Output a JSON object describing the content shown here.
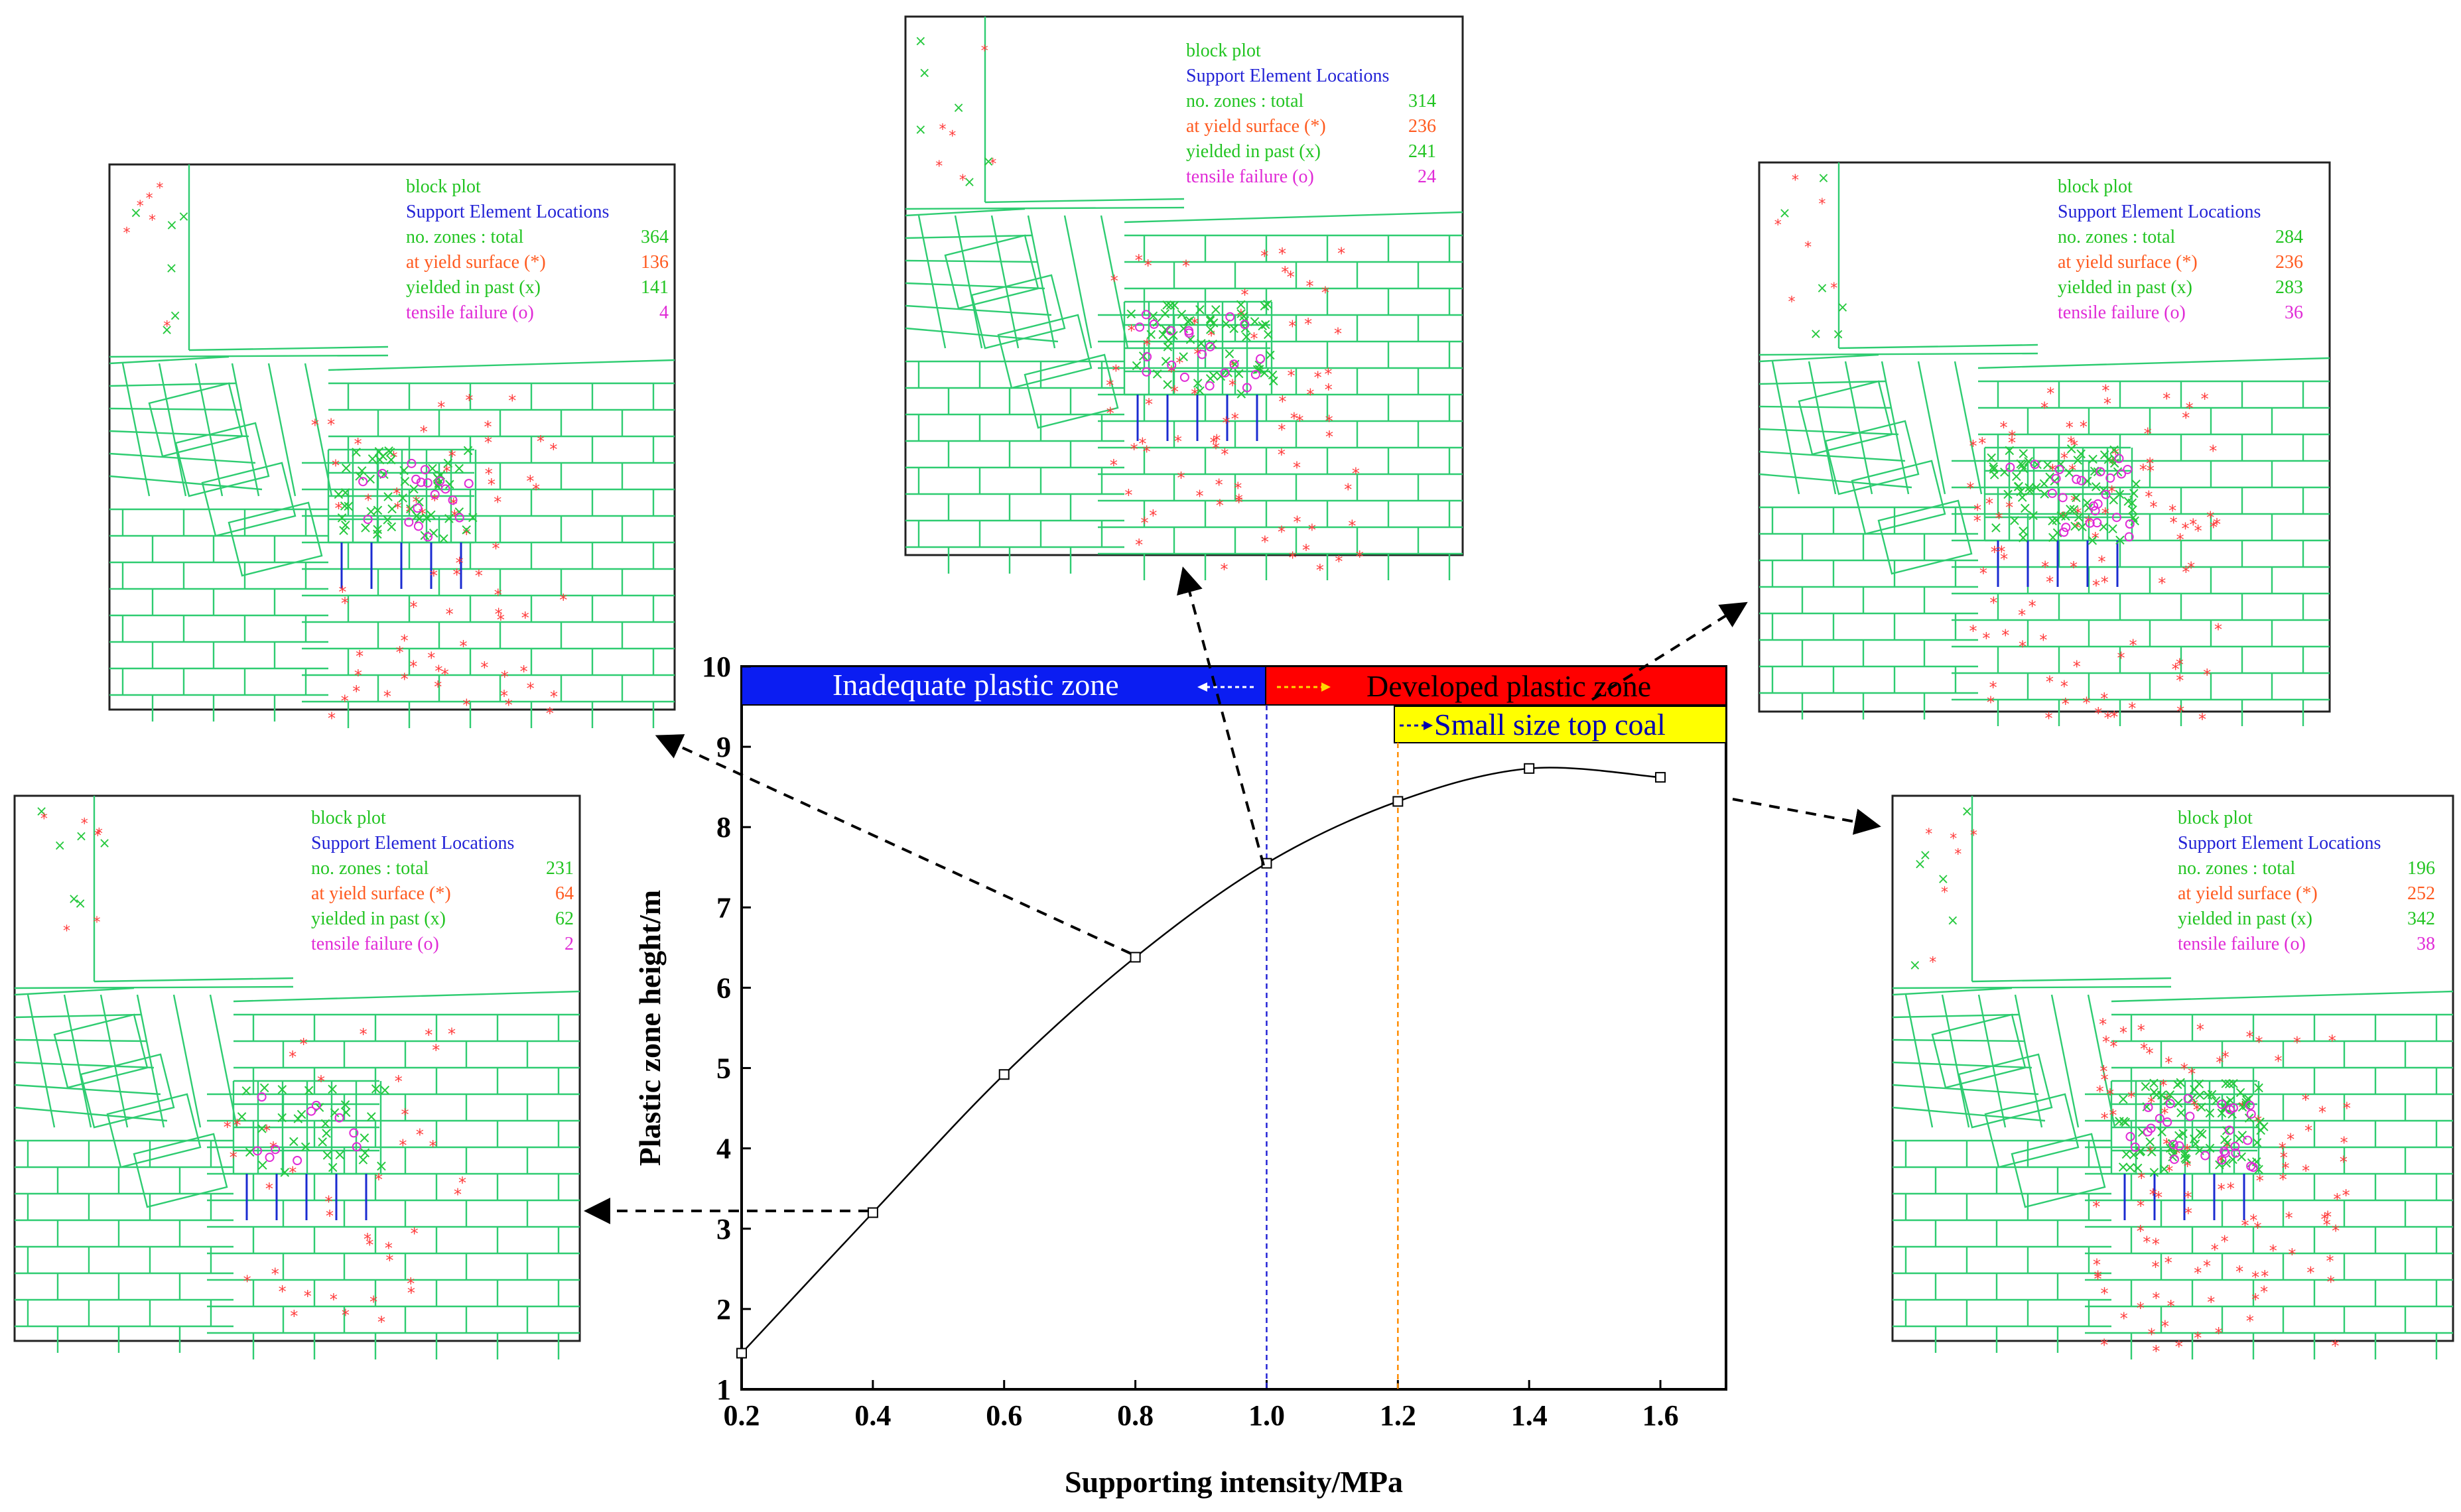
{
  "colors": {
    "block_line": "#2ecc71",
    "yield_marker": "#ff3b3b",
    "past_marker": "#27c93f",
    "tensile_marker": "#e02bd6",
    "legend_green": "#22c422",
    "legend_blue": "#2323d6",
    "legend_orange": "#ff5a1f",
    "legend_magenta": "#e02bd6",
    "inadequate_fill": "#0b1df2",
    "developed_fill": "#ff0000",
    "small_coal_fill": "#ffff00",
    "curve": "#000000",
    "line_1_0": "#2323d6",
    "line_1_2": "#ff8c00"
  },
  "chart_data": {
    "type": "line",
    "title": "",
    "xlabel": "Supporting intensity/MPa",
    "ylabel": "Plastic zone height/m",
    "xlim": [
      0.2,
      1.7
    ],
    "ylim": [
      1,
      10
    ],
    "xticks": [
      "0.2",
      "0.4",
      "0.6",
      "0.8",
      "1.0",
      "1.2",
      "1.4",
      "1.6"
    ],
    "xtick_values": [
      0.2,
      0.4,
      0.6,
      0.8,
      1.0,
      1.2,
      1.4,
      1.6
    ],
    "yticks": [
      "1",
      "2",
      "3",
      "4",
      "5",
      "6",
      "7",
      "8",
      "9",
      "10"
    ],
    "ytick_values": [
      1,
      2,
      3,
      4,
      5,
      6,
      7,
      8,
      9,
      10
    ],
    "x": [
      0.2,
      0.4,
      0.6,
      0.8,
      1.0,
      1.2,
      1.4,
      1.6
    ],
    "y": [
      1.45,
      3.2,
      4.92,
      6.38,
      7.55,
      8.32,
      8.73,
      8.62
    ],
    "vlines": [
      1.0,
      1.2
    ],
    "zones": {
      "inadequate": "Inadequate plastic zone",
      "developed": "Developed plastic zone",
      "small_coal": "Small size top coal"
    }
  },
  "panels": [
    {
      "legend_title": "block plot",
      "legend_subtitle": "Support Element Locations",
      "total_label": "no. zones : total",
      "total": "231",
      "yield_label": "at  yield  surface  (*)",
      "yield": "64",
      "past_label": "yielded  in past  (x)",
      "past": "62",
      "tensile_label": "tensile failure  (o)",
      "tensile": "2"
    },
    {
      "legend_title": "block plot",
      "legend_subtitle": "Support Element Locations",
      "total_label": "no. zones : total",
      "total": "364",
      "yield_label": "at  yield  surface  (*)",
      "yield": "136",
      "past_label": "yielded  in past  (x)",
      "past": "141",
      "tensile_label": "tensile failure  (o)",
      "tensile": "4"
    },
    {
      "legend_title": "block plot",
      "legend_subtitle": "Support Element Locations",
      "total_label": "no. zones : total",
      "total": "314",
      "yield_label": "at  yield  surface  (*)",
      "yield": "236",
      "past_label": "yielded  in past  (x)",
      "past": "241",
      "tensile_label": "tensile failure  (o)",
      "tensile": "24"
    },
    {
      "legend_title": "block plot",
      "legend_subtitle": "Support Element Locations",
      "total_label": "no. zones : total",
      "total": "284",
      "yield_label": "at  yield  surface  (*)",
      "yield": "236",
      "past_label": "yielded  in past  (x)",
      "past": "283",
      "tensile_label": "tensile failure  (o)",
      "tensile": "36"
    },
    {
      "legend_title": "block plot",
      "legend_subtitle": "Support Element Locations",
      "total_label": "no. zones : total",
      "total": "196",
      "yield_label": "at  yield  surface  (*)",
      "yield": "252",
      "past_label": "yielded  in past  (x)",
      "past": "342",
      "tensile_label": "tensile failure  (o)",
      "tensile": "38"
    }
  ]
}
